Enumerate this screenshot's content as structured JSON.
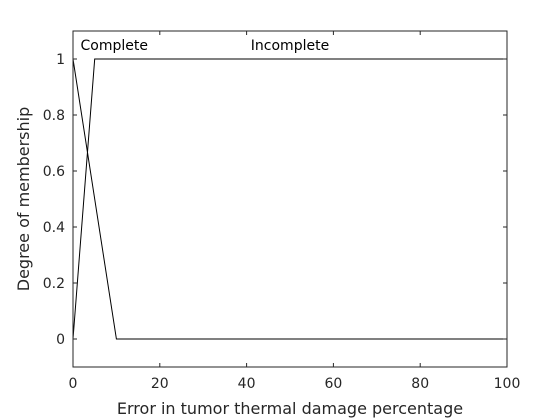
{
  "chart_data": {
    "type": "line",
    "title": "",
    "xlabel": "Error in tumor thermal damage percentage",
    "ylabel": "Degree of membership",
    "xlim": [
      0,
      100
    ],
    "ylim": [
      -0.1,
      1.1
    ],
    "xticks": [
      0,
      20,
      40,
      60,
      80,
      100
    ],
    "yticks": [
      0,
      0.2,
      0.4,
      0.6,
      0.8,
      1
    ],
    "xtick_labels": [
      "0",
      "20",
      "40",
      "60",
      "80",
      "100"
    ],
    "ytick_labels": [
      "0",
      "0.2",
      "0.4",
      "0.6",
      "0.8",
      "1"
    ],
    "grid": false,
    "line_color": "#000000",
    "series": [
      {
        "name": "Complete",
        "x": [
          0,
          10,
          100
        ],
        "y": [
          1,
          0,
          0
        ],
        "label_x": 9.5,
        "label_y": 1.05
      },
      {
        "name": "Incomplete",
        "x": [
          0,
          5,
          100
        ],
        "y": [
          0,
          1,
          1
        ],
        "label_x": 50,
        "label_y": 1.05
      }
    ]
  }
}
